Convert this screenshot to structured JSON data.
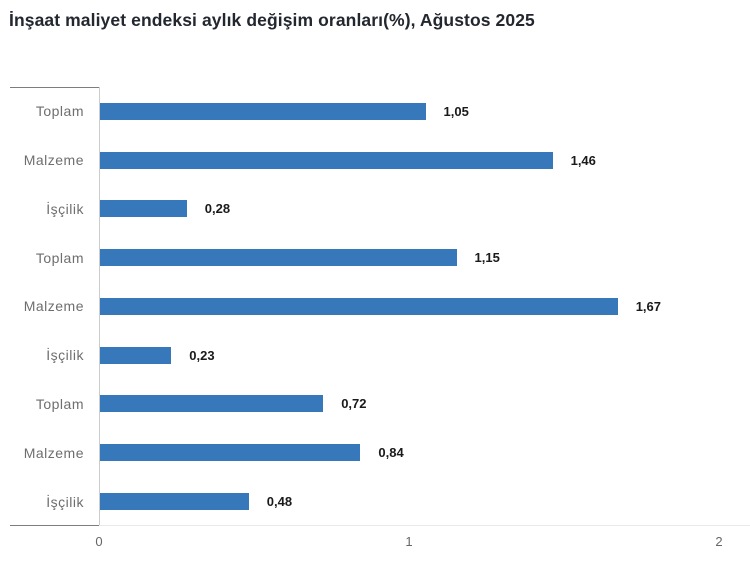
{
  "chart": {
    "title": "İnşaat maliyet endeksi aylık değişim oranları(%), Ağustos 2025"
  },
  "chart_data": {
    "type": "bar",
    "orientation": "horizontal",
    "title": "İnşaat maliyet endeksi aylık değişim oranları(%), Ağustos 2025",
    "categories": [
      "Toplam",
      "Malzeme",
      "İşçilik",
      "Toplam",
      "Malzeme",
      "İşçilik",
      "Toplam",
      "Malzeme",
      "İşçilik"
    ],
    "values": [
      1.05,
      1.46,
      0.28,
      1.15,
      1.67,
      0.23,
      0.72,
      0.84,
      0.48
    ],
    "value_labels": [
      "1,05",
      "1,46",
      "0,28",
      "1,15",
      "1,67",
      "0,23",
      "0,72",
      "0,84",
      "0,48"
    ],
    "xlabel": "",
    "ylabel": "",
    "xlim": [
      0,
      2
    ],
    "x_tick_labels": [
      "0",
      "1",
      "2"
    ],
    "grid": false,
    "legend": false,
    "bar_color": "#3678ba"
  }
}
